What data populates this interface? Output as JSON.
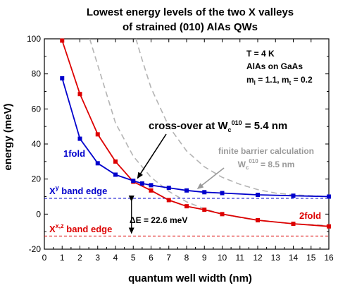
{
  "chart_data": {
    "type": "line",
    "title_line1": "Lowest energy levels of the two X valleys",
    "title_line2": "of strained (010) AlAs QWs",
    "xlabel": "quantum well width (nm)",
    "ylabel": "energy (meV)",
    "xlim": [
      0,
      16
    ],
    "ylim": [
      -20,
      100
    ],
    "xticks": [
      "0",
      "1",
      "2",
      "3",
      "4",
      "5",
      "6",
      "7",
      "8",
      "9",
      "10",
      "11",
      "12",
      "13",
      "14",
      "15",
      "16"
    ],
    "yticks": [
      "-20",
      "0",
      "20",
      "40",
      "60",
      "80",
      "100"
    ],
    "series": [
      {
        "name": "1fold",
        "color": "#0000cc",
        "x": [
          1,
          2,
          3,
          4,
          5,
          5.5,
          6,
          7,
          8,
          9,
          10,
          12,
          14,
          16
        ],
        "y": [
          77.5,
          43,
          29,
          22.5,
          19,
          17.5,
          16.5,
          15,
          13.5,
          12.5,
          12,
          11,
          10.5,
          10
        ]
      },
      {
        "name": "2fold",
        "color": "#dd0000",
        "x": [
          1,
          2,
          3,
          4,
          5,
          6,
          7,
          8,
          9,
          10,
          12,
          14,
          16
        ],
        "y": [
          99,
          68.5,
          45.5,
          30,
          18.5,
          13.5,
          8,
          4.5,
          2.5,
          0,
          -3.5,
          -5.5,
          -7
        ]
      }
    ],
    "dashed_curves": {
      "color": "#b4b4b4",
      "curve_a": {
        "x": [
          2.55,
          3,
          4,
          5,
          6,
          7,
          8,
          9,
          10,
          11,
          12,
          13,
          14,
          15,
          16
        ],
        "y": [
          100,
          85,
          52,
          33,
          21,
          13,
          7,
          3,
          0,
          -2,
          -3.5,
          -4.5,
          -5.5,
          -6,
          -6.5
        ]
      },
      "curve_b": {
        "x": [
          5.15,
          5.5,
          6,
          7,
          8,
          9,
          10,
          11,
          12,
          13,
          14,
          15,
          16
        ],
        "y": [
          100,
          88,
          72,
          50,
          36,
          27,
          21,
          17,
          14,
          12,
          11,
          10.5,
          10
        ]
      }
    },
    "band_edges": [
      {
        "label_main": "X",
        "label_sup": "y",
        "label_rest": " band edge",
        "y": 9,
        "color": "#0000cc"
      },
      {
        "label_main": "X",
        "label_sup": "x,z",
        "label_rest": " band edge",
        "y": -12.5,
        "color": "#dd0000"
      }
    ],
    "delta_e": {
      "label": "ΔE = 22.6 meV",
      "x": 4.9
    },
    "crossover": {
      "label_main": "cross-over at W",
      "label_sub": "c",
      "label_sup": "010",
      "label_rest": " = 5.4 nm",
      "x": 5.4,
      "y": 18.5
    },
    "finite_barrier": {
      "line1": "finite barrier calculation",
      "line2_main": "W",
      "line2_sub": "c",
      "line2_sup": "010",
      "line2_rest": " = 8.5 nm",
      "x": 8.5,
      "y": 12.5
    },
    "params": {
      "line1": "T = 4 K",
      "line2": "AlAs on GaAs",
      "line3_a": "m",
      "line3_a_sub": "l",
      "line3_b": " = 1.1, m",
      "line3_b_sub": "t",
      "line3_c": " = 0.2"
    },
    "series_labels": {
      "s1": "1fold",
      "s2": "2fold"
    }
  }
}
